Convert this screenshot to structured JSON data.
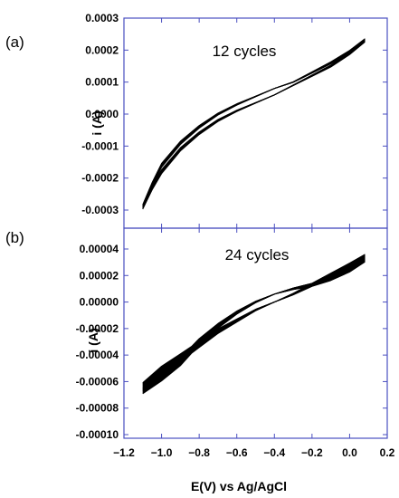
{
  "chart_data": [
    {
      "type": "line",
      "panel_label": "(a)",
      "annotation": "12 cycles",
      "ylabel": "i (A)",
      "xlim": [
        -1.2,
        0.2
      ],
      "ylim": [
        -0.00035,
        0.0003
      ],
      "xticks": [
        -1.2,
        -1.0,
        -0.8,
        -0.6,
        -0.4,
        -0.2,
        0.0,
        0.2
      ],
      "yticks": [
        "0.0003",
        "0.0002",
        "0.0001",
        "0.0000",
        "-0.0001",
        "-0.0002",
        "-0.0003"
      ],
      "ytick_values": [
        0.0003,
        0.0002,
        0.0001,
        0.0,
        -0.0001,
        -0.0002,
        -0.0003
      ],
      "cycles": 12,
      "series": [
        {
          "values_forward": [
            [
              -1.1,
              -0.00029
            ],
            [
              -1.05,
              -0.00022
            ],
            [
              -1.0,
              -0.00016
            ],
            [
              -0.9,
              -9e-05
            ],
            [
              -0.8,
              -4e-05
            ],
            [
              -0.7,
              0.0
            ],
            [
              -0.6,
              3e-05
            ],
            [
              -0.5,
              5.5e-05
            ],
            [
              -0.4,
              8e-05
            ],
            [
              -0.3,
              0.0001
            ],
            [
              -0.2,
              0.00013
            ],
            [
              -0.1,
              0.00016
            ],
            [
              0.0,
              0.000195
            ],
            [
              0.08,
              0.00023
            ]
          ],
          "values_reverse": [
            [
              0.08,
              0.00023
            ],
            [
              0.0,
              0.00019
            ],
            [
              -0.1,
              0.00015
            ],
            [
              -0.2,
              0.00012
            ],
            [
              -0.3,
              9e-05
            ],
            [
              -0.4,
              6e-05
            ],
            [
              -0.5,
              3.5e-05
            ],
            [
              -0.6,
              1e-05
            ],
            [
              -0.7,
              -2e-05
            ],
            [
              -0.8,
              -6e-05
            ],
            [
              -0.9,
              -0.00011
            ],
            [
              -1.0,
              -0.00018
            ],
            [
              -1.05,
              -0.00023
            ],
            [
              -1.1,
              -0.00029
            ]
          ]
        }
      ]
    },
    {
      "type": "line",
      "panel_label": "(b)",
      "annotation": "24 cycles",
      "ylabel": "i (A)",
      "xlabel": "E(V) vs Ag/AgCl",
      "xlim": [
        -1.2,
        0.2
      ],
      "ylim": [
        -0.0001,
        5e-05
      ],
      "xticks": [
        -1.2,
        -1.0,
        -0.8,
        -0.6,
        -0.4,
        -0.2,
        0.0,
        0.2
      ],
      "xtick_labels": [
        "−1.2",
        "−1.0",
        "−0.8",
        "−0.6",
        "−0.4",
        "−0.2",
        "0.0",
        "0.2"
      ],
      "yticks": [
        "0.00004",
        "0.00002",
        "0.00000",
        "-0.00002",
        "-0.00004",
        "-0.00006",
        "-0.00008",
        "-0.00010"
      ],
      "ytick_values": [
        4e-05,
        2e-05,
        0.0,
        -2e-05,
        -4e-05,
        -6e-05,
        -8e-05,
        -0.0001
      ],
      "cycles": 24,
      "series": [
        {
          "values_upper": [
            [
              -1.1,
              -6.5e-05
            ],
            [
              -1.0,
              -5.2e-05
            ],
            [
              -0.9,
              -4.2e-05
            ],
            [
              -0.8,
              -3.2e-05
            ],
            [
              -0.7,
              -2.2e-05
            ],
            [
              -0.6,
              -1.4e-05
            ],
            [
              -0.5,
              -6e-06
            ],
            [
              -0.4,
              0.0
            ],
            [
              -0.3,
              6e-06
            ],
            [
              -0.2,
              1.3e-05
            ],
            [
              -0.1,
              2e-05
            ],
            [
              0.0,
              2.7e-05
            ],
            [
              0.08,
              3.3e-05
            ]
          ],
          "values_lower": [
            [
              0.08,
              3.3e-05
            ],
            [
              0.0,
              2.5e-05
            ],
            [
              -0.1,
              1.8e-05
            ],
            [
              -0.2,
              1.3e-05
            ],
            [
              -0.3,
              1e-05
            ],
            [
              -0.4,
              6e-06
            ],
            [
              -0.5,
              0.0
            ],
            [
              -0.6,
              -8e-06
            ],
            [
              -0.7,
              -1.8e-05
            ],
            [
              -0.8,
              -3e-05
            ],
            [
              -0.9,
              -4.5e-05
            ],
            [
              -1.0,
              -5.6e-05
            ],
            [
              -1.1,
              -6.5e-05
            ]
          ]
        }
      ]
    }
  ]
}
